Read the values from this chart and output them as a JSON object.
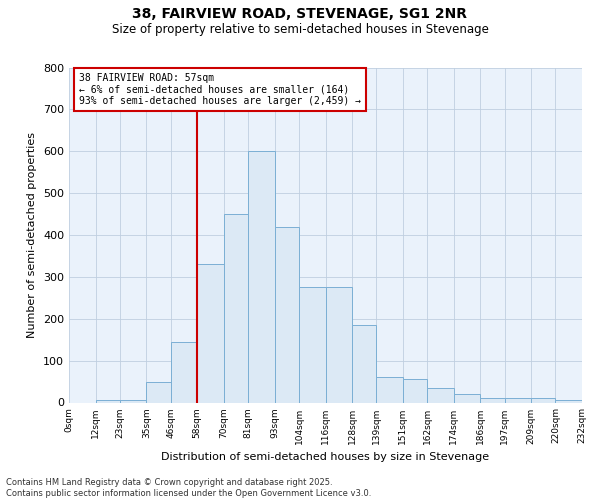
{
  "title_line1": "38, FAIRVIEW ROAD, STEVENAGE, SG1 2NR",
  "title_line2": "Size of property relative to semi-detached houses in Stevenage",
  "xlabel": "Distribution of semi-detached houses by size in Stevenage",
  "ylabel": "Number of semi-detached properties",
  "footnote1": "Contains HM Land Registry data © Crown copyright and database right 2025.",
  "footnote2": "Contains public sector information licensed under the Open Government Licence v3.0.",
  "annotation_title": "38 FAIRVIEW ROAD: 57sqm",
  "annotation_line1": "← 6% of semi-detached houses are smaller (164)",
  "annotation_line2": "93% of semi-detached houses are larger (2,459) →",
  "property_size_bin": 4,
  "red_line_x": 58,
  "bin_edges": [
    0,
    12,
    23,
    35,
    46,
    58,
    70,
    81,
    93,
    104,
    116,
    128,
    139,
    151,
    162,
    174,
    186,
    197,
    209,
    220,
    232
  ],
  "bin_labels": [
    "0sqm",
    "12sqm",
    "23sqm",
    "35sqm",
    "46sqm",
    "58sqm",
    "70sqm",
    "81sqm",
    "93sqm",
    "104sqm",
    "116sqm",
    "128sqm",
    "139sqm",
    "151sqm",
    "162sqm",
    "174sqm",
    "186sqm",
    "197sqm",
    "209sqm",
    "220sqm",
    "232sqm"
  ],
  "counts": [
    0,
    5,
    5,
    50,
    145,
    330,
    450,
    600,
    420,
    275,
    275,
    185,
    60,
    55,
    35,
    20,
    10,
    10,
    10,
    5
  ],
  "bar_color": "#dce9f5",
  "bar_edge_color": "#7bafd4",
  "highlight_line_color": "#cc0000",
  "annotation_box_color": "#ffffff",
  "annotation_box_edge": "#cc0000",
  "plot_bg_color": "#eaf2fb",
  "fig_bg_color": "#ffffff",
  "ylim": [
    0,
    800
  ],
  "yticks": [
    0,
    100,
    200,
    300,
    400,
    500,
    600,
    700,
    800
  ]
}
